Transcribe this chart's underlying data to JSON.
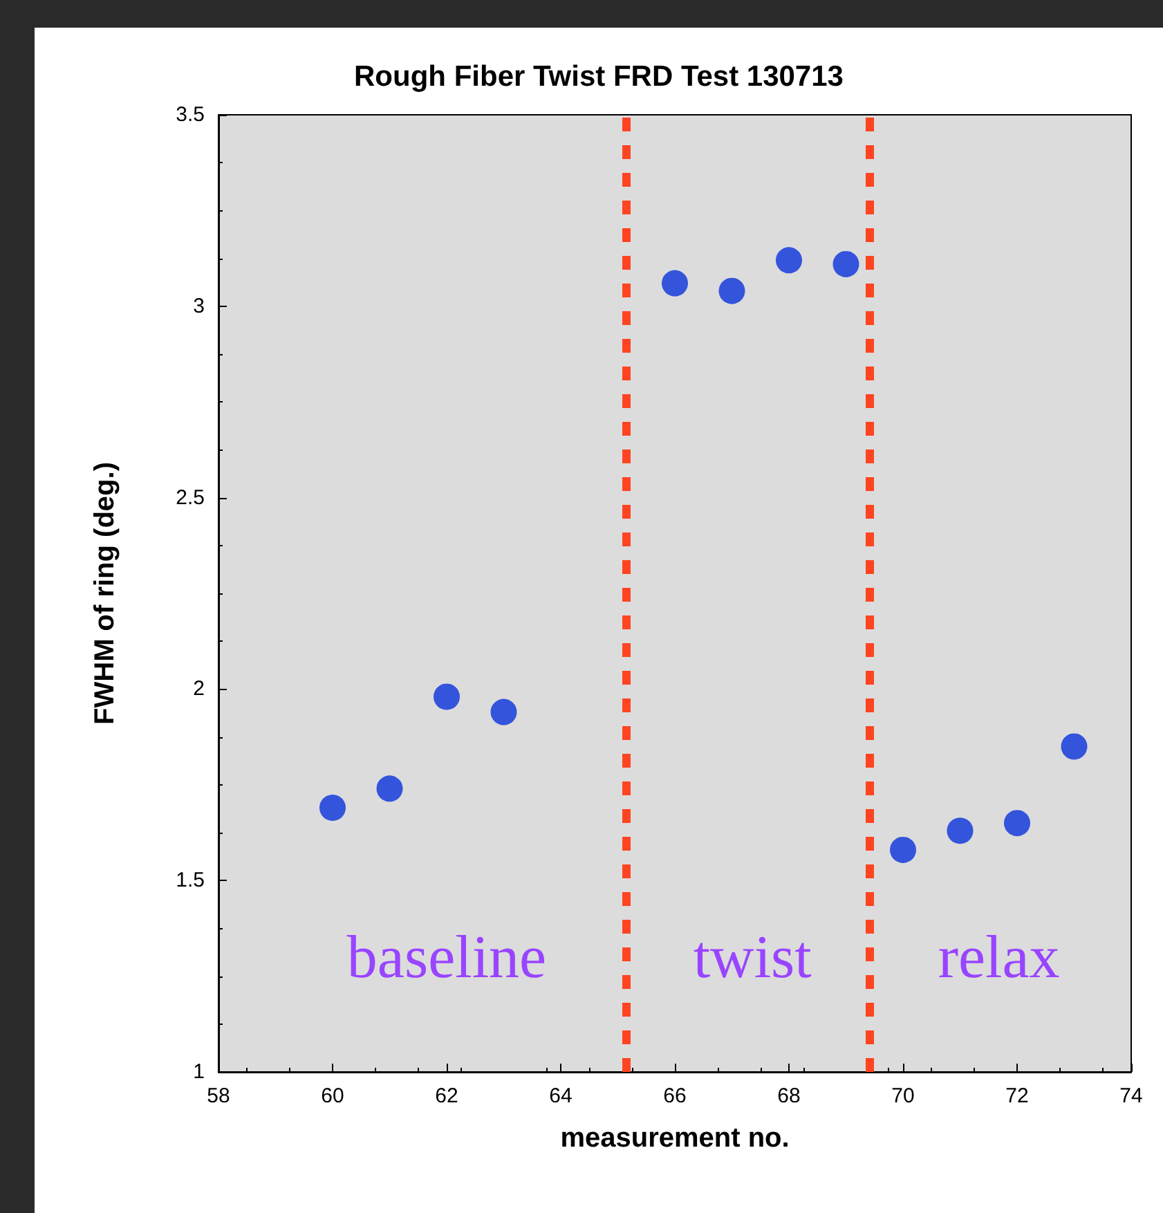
{
  "chart_data": {
    "type": "scatter",
    "title": "Rough Fiber Twist FRD Test 130713",
    "xlabel": "measurement no.",
    "ylabel": "FWHM of ring (deg.)",
    "x": [
      60,
      61,
      62,
      63,
      66,
      67,
      68,
      69,
      70,
      71,
      72,
      73
    ],
    "series": [
      {
        "color": "#0a32dc",
        "values": [
          1.69,
          1.74,
          1.98,
          1.94,
          3.06,
          3.04,
          3.12,
          3.11,
          1.58,
          1.63,
          1.65,
          1.85
        ]
      }
    ],
    "xlim": [
      58,
      74
    ],
    "xticks": [
      58,
      60,
      62,
      64,
      66,
      68,
      70,
      72,
      74
    ],
    "ylim": [
      1,
      3.5
    ],
    "yticks": [
      1,
      1.5,
      2,
      2.5,
      3,
      3.5
    ],
    "grid": false,
    "marker": "circle",
    "ref_lines": [
      {
        "axis": "x",
        "value": 65.15,
        "color": "#ff4422",
        "line_style": "dashed"
      },
      {
        "axis": "x",
        "value": 69.4,
        "color": "#ff4422",
        "line_style": "dashed"
      }
    ],
    "annotations": [
      "baseline",
      "twist",
      "relax"
    ]
  }
}
